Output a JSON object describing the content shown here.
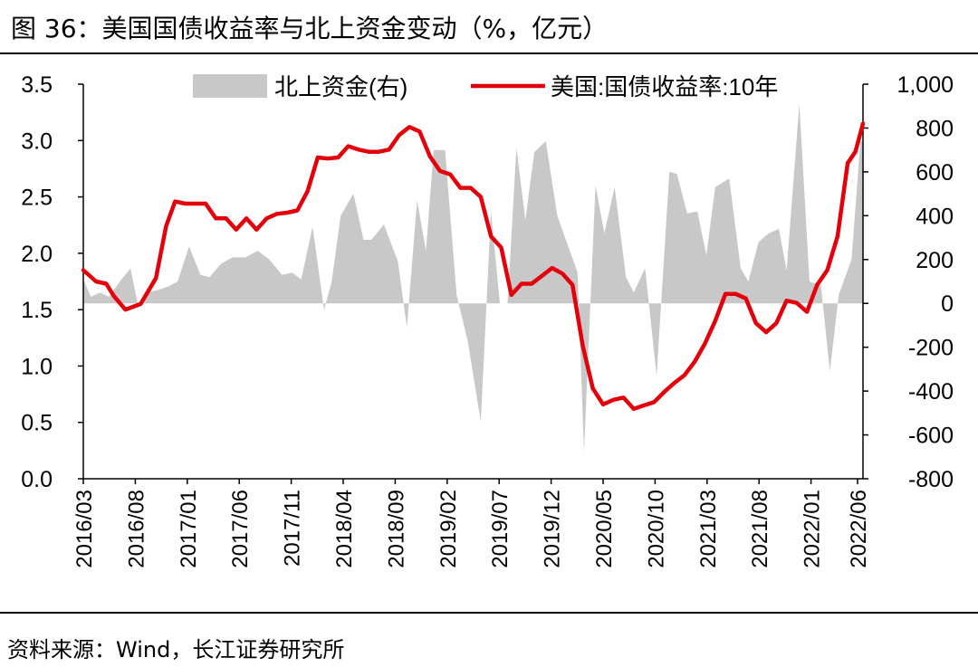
{
  "header": {
    "title": "图 36：美国国债收益率与北上资金变动（%，亿元）"
  },
  "footer": {
    "source": "资料来源：Wind，长江证券研究所"
  },
  "chart_data": {
    "type": "bar+line",
    "title": "美国国债收益率与北上资金变动（%，亿元）",
    "legend": [
      "北上资金(右)",
      "美国:国债收益率:10年"
    ],
    "legend_position": "top",
    "colors": {
      "bar": "#c8c8c8",
      "line": "#e3000b"
    },
    "left_axis": {
      "label": "%",
      "min": 0.0,
      "max": 3.5,
      "step": 0.5,
      "ticks": [
        "0.0",
        "0.5",
        "1.0",
        "1.5",
        "2.0",
        "2.5",
        "3.0",
        "3.5"
      ]
    },
    "right_axis": {
      "label": "亿元",
      "min": -800,
      "max": 1000,
      "step": 200,
      "ticks": [
        "-800",
        "-600",
        "-400",
        "-200",
        "0",
        "200",
        "400",
        "600",
        "800",
        "1,000"
      ]
    },
    "x_tick_labels": [
      "2016/03",
      "2016/08",
      "2017/01",
      "2017/06",
      "2017/11",
      "2018/04",
      "2018/09",
      "2019/02",
      "2019/07",
      "2019/12",
      "2020/05",
      "2020/10",
      "2021/03",
      "2021/08",
      "2022/01",
      "2022/06"
    ],
    "x_start": "2016/03",
    "x_end": "2022/06",
    "series": [
      {
        "name": "北上资金(右)",
        "axis": "right",
        "kind": "area",
        "points": [
          [
            0.0,
            110
          ],
          [
            0.6,
            30
          ],
          [
            1.3,
            50
          ],
          [
            2.0,
            30
          ],
          [
            3.0,
            110
          ],
          [
            3.7,
            160
          ],
          [
            4.3,
            -10
          ],
          [
            5.0,
            50
          ],
          [
            5.8,
            60
          ],
          [
            6.8,
            80
          ],
          [
            7.4,
            100
          ],
          [
            8.3,
            260
          ],
          [
            9.2,
            130
          ],
          [
            9.9,
            120
          ],
          [
            10.8,
            180
          ],
          [
            11.7,
            210
          ],
          [
            12.7,
            210
          ],
          [
            13.7,
            240
          ],
          [
            14.6,
            200
          ],
          [
            15.6,
            130
          ],
          [
            16.4,
            140
          ],
          [
            17.1,
            110
          ],
          [
            18.0,
            350
          ],
          [
            18.9,
            -30
          ],
          [
            19.5,
            100
          ],
          [
            20.2,
            400
          ],
          [
            21.2,
            500
          ],
          [
            22.0,
            290
          ],
          [
            22.6,
            290
          ],
          [
            23.6,
            360
          ],
          [
            24.7,
            190
          ],
          [
            25.4,
            -110
          ],
          [
            26.2,
            470
          ],
          [
            26.9,
            240
          ],
          [
            27.5,
            700
          ],
          [
            28.4,
            700
          ],
          [
            29.3,
            40
          ],
          [
            30.2,
            -180
          ],
          [
            31.2,
            -540
          ],
          [
            32.0,
            420
          ],
          [
            32.7,
            0
          ],
          [
            33.3,
            0
          ],
          [
            34.0,
            710
          ],
          [
            34.7,
            380
          ],
          [
            35.4,
            690
          ],
          [
            36.3,
            740
          ],
          [
            37.2,
            400
          ],
          [
            38.0,
            270
          ],
          [
            38.8,
            140
          ],
          [
            39.3,
            -680
          ],
          [
            40.2,
            540
          ],
          [
            40.9,
            320
          ],
          [
            41.7,
            530
          ],
          [
            42.6,
            120
          ],
          [
            43.2,
            50
          ],
          [
            44.1,
            160
          ],
          [
            45.0,
            -330
          ],
          [
            46.0,
            600
          ],
          [
            46.6,
            590
          ],
          [
            47.4,
            410
          ],
          [
            48.2,
            420
          ],
          [
            48.9,
            220
          ],
          [
            49.6,
            530
          ],
          [
            50.7,
            570
          ],
          [
            51.6,
            160
          ],
          [
            52.2,
            100
          ],
          [
            53.0,
            280
          ],
          [
            53.8,
            320
          ],
          [
            54.6,
            340
          ],
          [
            55.2,
            150
          ],
          [
            56.2,
            910
          ],
          [
            57.0,
            100
          ],
          [
            57.9,
            80
          ],
          [
            58.6,
            -310
          ],
          [
            59.3,
            40
          ],
          [
            60.3,
            200
          ],
          [
            61.0,
            740
          ],
          [
            61.2,
            740
          ]
        ]
      },
      {
        "name": "美国:国债收益率:10年",
        "axis": "left",
        "kind": "line",
        "points": [
          [
            0.0,
            1.85
          ],
          [
            1.0,
            1.75
          ],
          [
            1.8,
            1.73
          ],
          [
            2.4,
            1.62
          ],
          [
            3.3,
            1.5
          ],
          [
            4.5,
            1.55
          ],
          [
            5.7,
            1.78
          ],
          [
            6.5,
            2.24
          ],
          [
            7.2,
            2.46
          ],
          [
            8.0,
            2.44
          ],
          [
            8.8,
            2.44
          ],
          [
            9.6,
            2.44
          ],
          [
            10.4,
            2.31
          ],
          [
            11.2,
            2.31
          ],
          [
            12.0,
            2.21
          ],
          [
            12.8,
            2.31
          ],
          [
            13.6,
            2.21
          ],
          [
            14.4,
            2.31
          ],
          [
            15.2,
            2.35
          ],
          [
            16.0,
            2.36
          ],
          [
            16.8,
            2.38
          ],
          [
            17.6,
            2.55
          ],
          [
            18.4,
            2.85
          ],
          [
            19.2,
            2.84
          ],
          [
            20.0,
            2.85
          ],
          [
            20.8,
            2.95
          ],
          [
            21.6,
            2.92
          ],
          [
            22.4,
            2.9
          ],
          [
            23.2,
            2.9
          ],
          [
            24.0,
            2.92
          ],
          [
            24.8,
            3.05
          ],
          [
            25.6,
            3.12
          ],
          [
            26.4,
            3.08
          ],
          [
            27.2,
            2.86
          ],
          [
            28.0,
            2.73
          ],
          [
            28.8,
            2.7
          ],
          [
            29.6,
            2.58
          ],
          [
            30.4,
            2.58
          ],
          [
            31.2,
            2.5
          ],
          [
            32.0,
            2.15
          ],
          [
            32.8,
            2.05
          ],
          [
            33.6,
            1.63
          ],
          [
            34.4,
            1.73
          ],
          [
            35.2,
            1.73
          ],
          [
            36.0,
            1.8
          ],
          [
            36.8,
            1.87
          ],
          [
            37.6,
            1.82
          ],
          [
            38.4,
            1.72
          ],
          [
            39.2,
            1.18
          ],
          [
            40.0,
            0.8
          ],
          [
            40.8,
            0.66
          ],
          [
            41.6,
            0.7
          ],
          [
            42.4,
            0.72
          ],
          [
            43.2,
            0.62
          ],
          [
            44.0,
            0.65
          ],
          [
            44.8,
            0.68
          ],
          [
            45.6,
            0.77
          ],
          [
            46.4,
            0.85
          ],
          [
            47.2,
            0.92
          ],
          [
            48.0,
            1.04
          ],
          [
            48.8,
            1.2
          ],
          [
            49.6,
            1.4
          ],
          [
            50.4,
            1.64
          ],
          [
            51.2,
            1.64
          ],
          [
            52.0,
            1.6
          ],
          [
            52.8,
            1.38
          ],
          [
            53.6,
            1.3
          ],
          [
            54.4,
            1.38
          ],
          [
            55.2,
            1.58
          ],
          [
            56.0,
            1.56
          ],
          [
            56.8,
            1.48
          ],
          [
            57.6,
            1.72
          ],
          [
            58.4,
            1.85
          ],
          [
            59.2,
            2.15
          ],
          [
            60.0,
            2.8
          ],
          [
            60.6,
            2.9
          ],
          [
            61.2,
            3.15
          ]
        ]
      }
    ]
  }
}
